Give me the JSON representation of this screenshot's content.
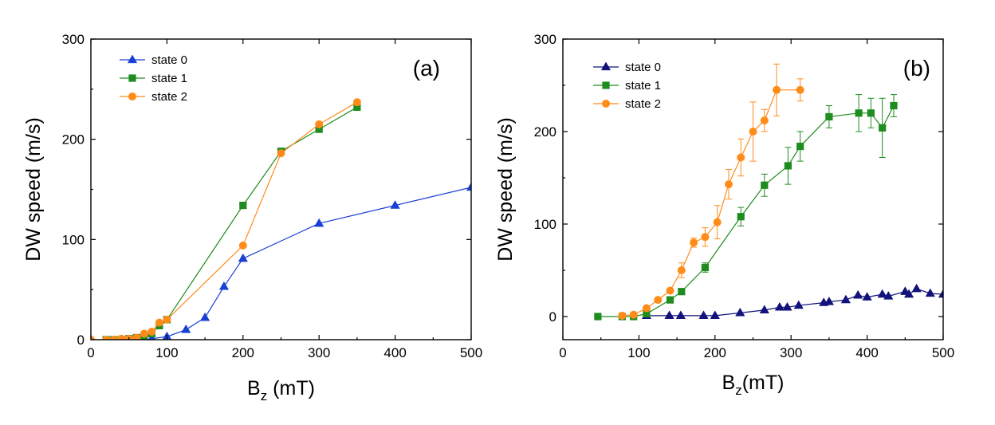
{
  "chart_data": [
    {
      "type": "line",
      "panel_label": "(a)",
      "xlabel": "B",
      "xlabel_sub": "z",
      "xlabel_unit": " (mT)",
      "ylabel": "DW speed (m/s)",
      "xlim": [
        0,
        500
      ],
      "ylim": [
        0,
        300
      ],
      "xticks": [
        0,
        100,
        200,
        300,
        400,
        500
      ],
      "yticks": [
        0,
        100,
        200,
        300
      ],
      "legend_position": "top-left",
      "series": [
        {
          "name": "state 0",
          "color": "#1a3fd6",
          "marker": "triangle",
          "x": [
            70,
            80,
            100,
            125,
            150,
            175,
            200,
            300,
            400,
            500
          ],
          "y": [
            0,
            1,
            3,
            10,
            22,
            53,
            81,
            116,
            134,
            152
          ]
        },
        {
          "name": "state 1",
          "color": "#1e8c1e",
          "marker": "square",
          "x": [
            20,
            30,
            40,
            50,
            60,
            70,
            80,
            90,
            100,
            200,
            250,
            300,
            350
          ],
          "y": [
            0,
            0,
            0,
            1,
            2,
            3,
            6,
            14,
            20,
            134,
            188,
            210,
            232
          ]
        },
        {
          "name": "state 2",
          "color": "#ff8c1a",
          "marker": "circle",
          "x": [
            0,
            20,
            30,
            40,
            50,
            60,
            70,
            80,
            90,
            100,
            200,
            250,
            300,
            350
          ],
          "y": [
            0,
            0,
            0,
            1,
            1,
            2,
            6,
            8,
            17,
            20,
            94,
            186,
            215,
            237
          ]
        }
      ]
    },
    {
      "type": "line",
      "panel_label": "(b)",
      "xlabel": "B",
      "xlabel_sub": "z",
      "xlabel_unit": "(mT)",
      "ylabel": "DW speed (m/s)",
      "xlim": [
        0,
        500
      ],
      "ylim": [
        -25,
        300
      ],
      "xticks": [
        0,
        100,
        200,
        300,
        400,
        500
      ],
      "yticks": [
        0,
        100,
        200,
        300
      ],
      "legend_position": "top-left",
      "series": [
        {
          "name": "state 0",
          "color": "#12127a",
          "marker": "triangle",
          "x": [
            110,
            140,
            155,
            185,
            200,
            233,
            265,
            285,
            295,
            310,
            343,
            350,
            372,
            388,
            400,
            420,
            428,
            450,
            455,
            465,
            483,
            500
          ],
          "y": [
            1,
            1,
            1,
            1,
            1,
            4,
            7,
            10,
            10,
            12,
            15,
            16,
            18,
            23,
            21,
            24,
            22,
            27,
            24,
            30,
            25,
            24
          ]
        },
        {
          "name": "state 1",
          "color": "#1e8c1e",
          "marker": "square",
          "x": [
            46,
            78,
            93,
            110,
            141,
            156,
            187,
            234,
            265,
            296,
            312,
            350,
            389,
            405,
            420,
            435
          ],
          "y": [
            0,
            0,
            0,
            3,
            18,
            27,
            53,
            108,
            142,
            163,
            184,
            216,
            220,
            220,
            204,
            228
          ],
          "err": [
            0,
            0,
            0,
            0,
            3,
            3,
            5,
            10,
            12,
            20,
            16,
            12,
            20,
            16,
            32,
            12
          ]
        },
        {
          "name": "state 2",
          "color": "#ff8c1a",
          "marker": "circle",
          "x": [
            78,
            93,
            110,
            125,
            141,
            156,
            172,
            187,
            203,
            218,
            234,
            250,
            265,
            281,
            312
          ],
          "y": [
            1,
            2,
            9,
            18,
            28,
            50,
            80,
            86,
            102,
            143,
            172,
            200,
            212,
            245,
            245
          ],
          "err": [
            0,
            0,
            0,
            0,
            0,
            8,
            5,
            10,
            18,
            16,
            20,
            32,
            12,
            28,
            12
          ]
        }
      ]
    }
  ]
}
